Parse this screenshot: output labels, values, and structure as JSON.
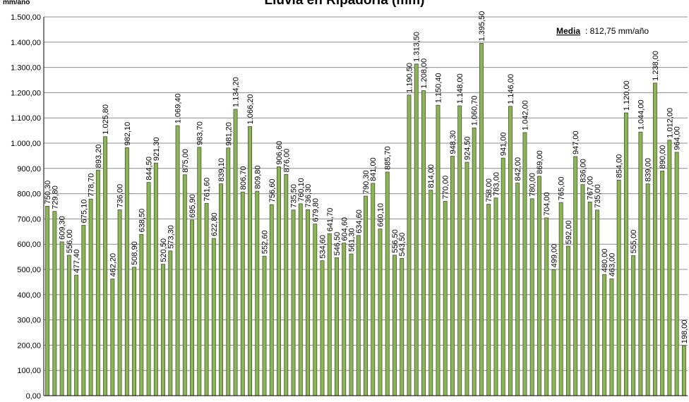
{
  "chart_data": {
    "type": "bar",
    "title": "Lluvia en Ripadoria (mm)",
    "ylabel": "mm/año",
    "xlabel": "",
    "ylim": [
      0,
      1500
    ],
    "yticks": [
      "0,00",
      "100,00",
      "200,00",
      "300,00",
      "400,00",
      "500,00",
      "600,00",
      "700,00",
      "800,00",
      "900,00",
      "1.000,00",
      "1.100,00",
      "1.200,00",
      "1.300,00",
      "1.400,00",
      "1.500,00"
    ],
    "grid": true,
    "legend": "none",
    "annotation": {
      "label": "Media",
      "value": ": 812,75  mm/año"
    },
    "bar_color": "#8fb35a",
    "bar_stroke": "#3d5a1f",
    "values": [
      750.3,
      729.8,
      609.3,
      556.0,
      477.4,
      675.1,
      778.7,
      893.2,
      1025.8,
      462.2,
      736.0,
      982.1,
      508.9,
      638.5,
      844.5,
      921.3,
      520.5,
      573.3,
      1069.4,
      875.0,
      695.9,
      983.7,
      761.6,
      622.8,
      839.1,
      981.2,
      1134.2,
      806.7,
      1066.2,
      809.8,
      552.6,
      756.6,
      906.6,
      876.0,
      735.5,
      760.1,
      736.3,
      679.8,
      534.6,
      641.7,
      546.5,
      604.6,
      561.3,
      634.6,
      790.3,
      841.0,
      660.1,
      885.7,
      556.5,
      543.5,
      1190.5,
      1313.5,
      1208.0,
      814.0,
      1150.4,
      770.0,
      948.3,
      1148.0,
      924.5,
      1060.7,
      1395.5,
      758.0,
      783.0,
      941.0,
      1146.0,
      842.0,
      1042.0,
      780.0,
      869.0,
      704.0,
      499.0,
      765.0,
      592.0,
      947.0,
      836.0,
      767.0,
      735.0,
      480.0,
      463.0,
      854.0,
      1120.0,
      555.0,
      1044.0,
      839.0,
      1238.0,
      890.0,
      1012.0,
      964.0,
      198.0
    ],
    "labels": [
      "750,30",
      "729,80",
      "609,30",
      "556,00",
      "477,40",
      "675,10",
      "778,70",
      "893,20",
      "1.025,80",
      "462,20",
      "736,00",
      "982,10",
      "508,90",
      "638,50",
      "844,50",
      "921,30",
      "520,50",
      "573,30",
      "1.069,40",
      "875,00",
      "695,90",
      "983,70",
      "761,60",
      "622,80",
      "839,10",
      "981,20",
      "1.134,20",
      "806,70",
      "1.066,20",
      "809,80",
      "552,60",
      "756,60",
      "906,60",
      "876,00",
      "735,50",
      "760,10",
      "736,30",
      "679,80",
      "534,60",
      "641,70",
      "546,50",
      "604,60",
      "561,30",
      "634,60",
      "790,30",
      "841,00",
      "660,10",
      "885,70",
      "556,50",
      "543,50",
      "1.190,50",
      "1.313,50",
      "1.208,00",
      "814,00",
      "1.150,40",
      "770,00",
      "948,30",
      "1.148,00",
      "924,50",
      "1.060,70",
      "1.395,50",
      "758,00",
      "783,00",
      "941,00",
      "1.146,00",
      "842,00",
      "1.042,00",
      "780,00",
      "869,00",
      "704,00",
      "499,00",
      "765,00",
      "592,00",
      "947,00",
      "836,00",
      "767,00",
      "735,00",
      "480,00",
      "463,00",
      "854,00",
      "1.120,00",
      "555,00",
      "1.044,00",
      "839,00",
      "1.238,00",
      "890,00",
      "1.012,00",
      "964,00",
      "198,00"
    ]
  }
}
